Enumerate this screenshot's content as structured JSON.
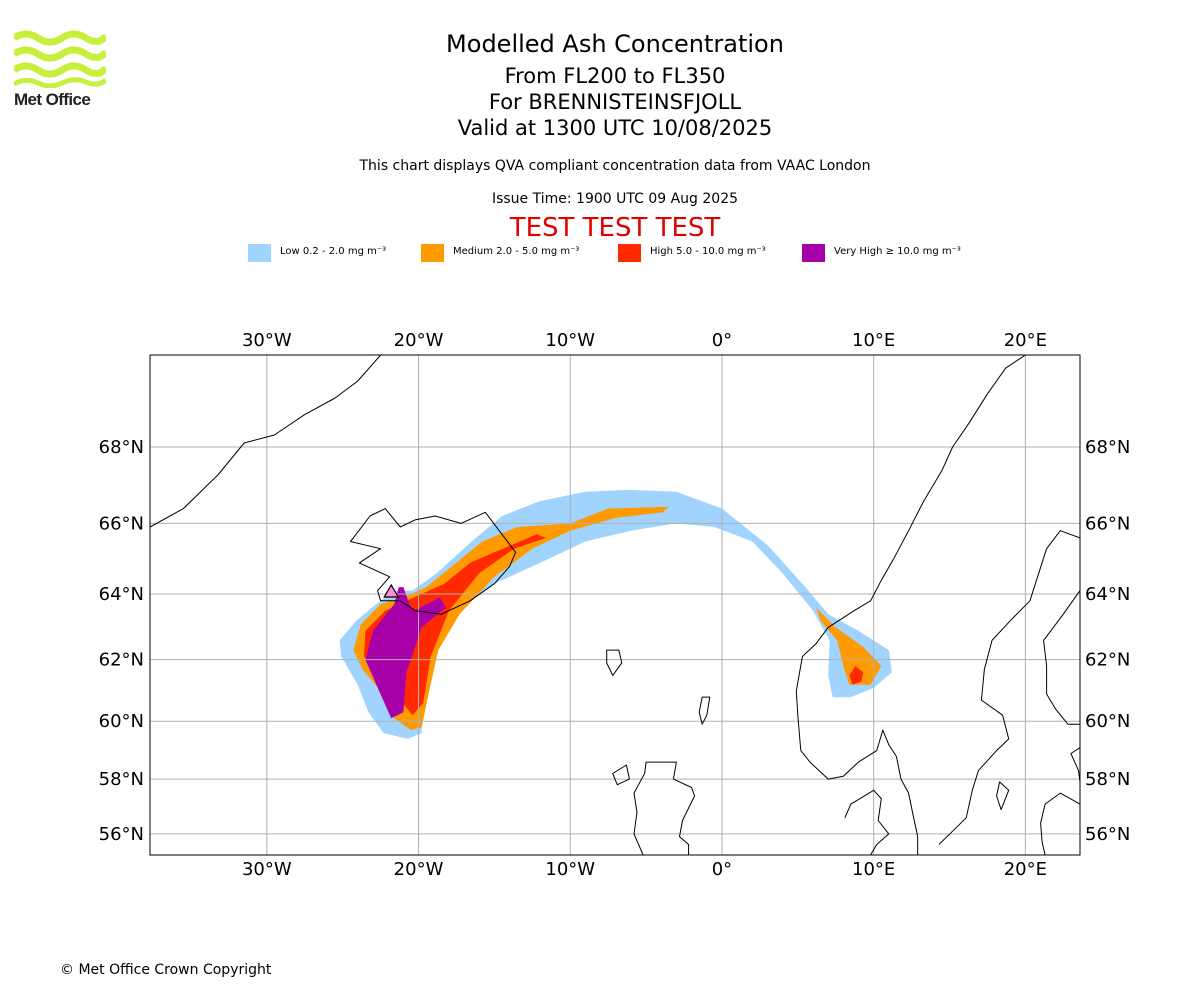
{
  "brand": {
    "name": "Met Office",
    "logo_color": "#c6f03c"
  },
  "title": {
    "main": "Modelled Ash Concentration",
    "range": "From FL200 to FL350",
    "volcano": "For BRENNISTEINSFJOLL",
    "valid": "Valid at 1300 UTC 10/08/2025"
  },
  "description": "This chart displays QVA compliant concentration data from VAAC London",
  "issue_time": "Issue Time: 1900 UTC 09 Aug 2025",
  "test_banner": {
    "text": "TEST TEST TEST",
    "color": "#e00000"
  },
  "legend": [
    {
      "label": "Low 0.2 - 2.0 mg m⁻³",
      "color": "#a0d4ff"
    },
    {
      "label": "Medium 2.0 - 5.0 mg m⁻³",
      "color": "#ff9a00"
    },
    {
      "label": "High 5.0 - 10.0 mg m⁻³",
      "color": "#ff2a00"
    },
    {
      "label": "Very High  ≥  10.0 mg m⁻³",
      "color": "#a800a8"
    }
  ],
  "map": {
    "projection": "mercator",
    "lon_range": [
      -37.7,
      23.6
    ],
    "lat_range": [
      55.2,
      70.2
    ],
    "lon_ticks": [
      {
        "value": -30,
        "label": "30°W"
      },
      {
        "value": -20,
        "label": "20°W"
      },
      {
        "value": -10,
        "label": "10°W"
      },
      {
        "value": 0,
        "label": "0°"
      },
      {
        "value": 10,
        "label": "10°E"
      },
      {
        "value": 20,
        "label": "20°E"
      }
    ],
    "lat_ticks": [
      {
        "value": 68,
        "label": "68°N"
      },
      {
        "value": 66,
        "label": "66°N"
      },
      {
        "value": 64,
        "label": "64°N"
      },
      {
        "value": 62,
        "label": "62°N"
      },
      {
        "value": 60,
        "label": "60°N"
      },
      {
        "value": 58,
        "label": "58°N"
      },
      {
        "value": 56,
        "label": "56°N"
      }
    ],
    "grid": true,
    "volcano_marker": {
      "lon": -21.8,
      "lat": 64.0
    }
  },
  "ash": {
    "low": [
      [
        -6,
        66.9
      ],
      [
        -3,
        66.85
      ],
      [
        0,
        66.4
      ],
      [
        3,
        65.4
      ],
      [
        5.5,
        64.2
      ],
      [
        7,
        63.4
      ],
      [
        9,
        62.9
      ],
      [
        11,
        62.3
      ],
      [
        11.2,
        61.6
      ],
      [
        10,
        61.1
      ],
      [
        8.5,
        60.8
      ],
      [
        7.3,
        60.8
      ],
      [
        7,
        61.5
      ],
      [
        7.1,
        62.6
      ],
      [
        6,
        63.5
      ],
      [
        4,
        64.6
      ],
      [
        2,
        65.5
      ],
      [
        -0.5,
        65.9
      ],
      [
        -3,
        66
      ],
      [
        -6,
        65.8
      ],
      [
        -9,
        65.5
      ],
      [
        -12,
        64.9
      ],
      [
        -15,
        64.3
      ],
      [
        -17.3,
        63.6
      ],
      [
        -18.8,
        62.5
      ],
      [
        -19.6,
        61
      ],
      [
        -19.8,
        59.6
      ],
      [
        -20.7,
        59.4
      ],
      [
        -22.3,
        59.6
      ],
      [
        -23.3,
        60.3
      ],
      [
        -24,
        61.2
      ],
      [
        -25.1,
        62.1
      ],
      [
        -25.2,
        62.6
      ],
      [
        -24.1,
        63.2
      ],
      [
        -22.8,
        63.7
      ],
      [
        -21.6,
        64.1
      ],
      [
        -20.4,
        64.1
      ],
      [
        -18.8,
        64.6
      ],
      [
        -16.5,
        65.5
      ],
      [
        -14.5,
        66.2
      ],
      [
        -12,
        66.6
      ],
      [
        -9,
        66.85
      ]
    ],
    "medium": [
      [
        -10,
        66.0
      ],
      [
        -7.5,
        66.4
      ],
      [
        -3.5,
        66.45
      ],
      [
        -3.9,
        66.3
      ],
      [
        -7,
        66.15
      ],
      [
        -10,
        65.8
      ],
      [
        -12.5,
        65.3
      ],
      [
        -15,
        64.5
      ],
      [
        -17.3,
        63.4
      ],
      [
        -18.7,
        62.3
      ],
      [
        -19.3,
        61
      ],
      [
        -19.8,
        59.8
      ],
      [
        -20.5,
        59.7
      ],
      [
        -21.6,
        60.1
      ],
      [
        -22.5,
        61
      ],
      [
        -23.7,
        61.7
      ],
      [
        -24.3,
        62.3
      ],
      [
        -23.8,
        63.1
      ],
      [
        -22.5,
        63.7
      ],
      [
        -21,
        63.9
      ],
      [
        -19.5,
        64.2
      ],
      [
        -17.8,
        64.8
      ],
      [
        -15.8,
        65.5
      ],
      [
        -13.5,
        65.9
      ]
    ],
    "medium2": [
      [
        6.2,
        63.6
      ],
      [
        7.5,
        63
      ],
      [
        9.3,
        62.4
      ],
      [
        10.5,
        61.8
      ],
      [
        9.8,
        61.2
      ],
      [
        8.4,
        61.2
      ],
      [
        8,
        61.8
      ],
      [
        7.6,
        62.6
      ],
      [
        6.5,
        63.2
      ]
    ],
    "high": [
      [
        -15,
        65.2
      ],
      [
        -12.2,
        65.7
      ],
      [
        -11.6,
        65.6
      ],
      [
        -13.7,
        65.3
      ],
      [
        -16,
        64.6
      ],
      [
        -18,
        63.5
      ],
      [
        -19.2,
        62.1
      ],
      [
        -19.7,
        60.6
      ],
      [
        -20.4,
        60.2
      ],
      [
        -21.2,
        60.7
      ],
      [
        -22.3,
        61.5
      ],
      [
        -23.6,
        62.1
      ],
      [
        -23.5,
        62.9
      ],
      [
        -22.2,
        63.5
      ],
      [
        -20.3,
        63.9
      ],
      [
        -18.3,
        64.3
      ],
      [
        -16.6,
        64.9
      ]
    ],
    "high2": [
      [
        8.8,
        61.8
      ],
      [
        9.3,
        61.6
      ],
      [
        9.2,
        61.3
      ],
      [
        8.6,
        61.2
      ],
      [
        8.4,
        61.5
      ]
    ],
    "veryhigh": [
      [
        -20.3,
        63.5
      ],
      [
        -18.6,
        63.9
      ],
      [
        -18.2,
        63.6
      ],
      [
        -19.8,
        63.0
      ],
      [
        -20.8,
        61.6
      ],
      [
        -21.0,
        60.3
      ],
      [
        -21.8,
        60.1
      ],
      [
        -22.6,
        61.0
      ],
      [
        -23.5,
        62.0
      ],
      [
        -23.0,
        62.9
      ],
      [
        -21.6,
        63.7
      ],
      [
        -21.3,
        64.2
      ],
      [
        -21.0,
        64.2
      ],
      [
        -20.6,
        63.7
      ]
    ]
  },
  "coast": {
    "iceland": [
      [
        -24.3,
        65.6
      ],
      [
        -23.2,
        66.2
      ],
      [
        -22.2,
        66.4
      ],
      [
        -21.2,
        65.9
      ],
      [
        -20.2,
        66.1
      ],
      [
        -18.9,
        66.2
      ],
      [
        -17.2,
        66.0
      ],
      [
        -15.6,
        66.3
      ],
      [
        -14.5,
        65.7
      ],
      [
        -13.6,
        65.2
      ],
      [
        -14.0,
        64.8
      ],
      [
        -15.0,
        64.3
      ],
      [
        -16.6,
        63.8
      ],
      [
        -18.5,
        63.4
      ],
      [
        -20.2,
        63.5
      ],
      [
        -21.2,
        63.8
      ],
      [
        -22.5,
        63.8
      ],
      [
        -22.7,
        64.1
      ],
      [
        -21.9,
        64.5
      ],
      [
        -23.9,
        64.9
      ],
      [
        -22.5,
        65.3
      ],
      [
        -24.5,
        65.5
      ]
    ],
    "greenland": [
      [
        -37.7,
        65.9
      ],
      [
        -35.5,
        66.4
      ],
      [
        -33.2,
        67.3
      ],
      [
        -31.5,
        68.1
      ],
      [
        -29.5,
        68.3
      ],
      [
        -27.5,
        68.8
      ],
      [
        -25.5,
        69.2
      ],
      [
        -24,
        69.6
      ],
      [
        -22.5,
        70.2
      ]
    ],
    "faroe": [
      [
        -7.6,
        62.3
      ],
      [
        -6.8,
        62.3
      ],
      [
        -6.6,
        61.9
      ],
      [
        -7.2,
        61.5
      ],
      [
        -7.6,
        61.9
      ]
    ],
    "shetland": [
      [
        -1.3,
        60.8
      ],
      [
        -0.8,
        60.8
      ],
      [
        -1.0,
        60.2
      ],
      [
        -1.3,
        59.9
      ],
      [
        -1.5,
        60.3
      ]
    ],
    "scotland": [
      [
        -5.0,
        58.6
      ],
      [
        -3.0,
        58.6
      ],
      [
        -3.2,
        58.0
      ],
      [
        -2.0,
        57.7
      ],
      [
        -1.8,
        57.4
      ],
      [
        -2.6,
        56.5
      ],
      [
        -2.8,
        55.9
      ],
      [
        -2.2,
        55.6
      ],
      [
        -2.2,
        55.2
      ],
      [
        -5.2,
        55.2
      ],
      [
        -5.8,
        56.0
      ],
      [
        -5.6,
        56.8
      ],
      [
        -5.8,
        57.5
      ],
      [
        -5.1,
        58.2
      ]
    ],
    "lewis": [
      [
        -6.3,
        58.5
      ],
      [
        -6.1,
        58.0
      ],
      [
        -6.9,
        57.8
      ],
      [
        -7.2,
        58.2
      ]
    ],
    "norway": [
      [
        5.2,
        59.0
      ],
      [
        5.0,
        60.2
      ],
      [
        4.9,
        61.0
      ],
      [
        5.3,
        62.1
      ],
      [
        6.2,
        62.5
      ],
      [
        7.0,
        63.0
      ],
      [
        8.7,
        63.5
      ],
      [
        9.8,
        63.8
      ],
      [
        10.5,
        64.4
      ],
      [
        11.3,
        65.0
      ],
      [
        12.3,
        65.8
      ],
      [
        13.3,
        66.6
      ],
      [
        14.5,
        67.4
      ],
      [
        15.2,
        68.0
      ],
      [
        16.3,
        68.6
      ],
      [
        17.5,
        69.3
      ],
      [
        18.7,
        69.9
      ],
      [
        20.0,
        70.2
      ]
    ],
    "southnorway": [
      [
        5.2,
        59.0
      ],
      [
        5.8,
        58.6
      ],
      [
        7.0,
        58.0
      ],
      [
        8.0,
        58.1
      ],
      [
        9.0,
        58.6
      ],
      [
        10.2,
        59.0
      ],
      [
        10.6,
        59.7
      ],
      [
        11.0,
        59.2
      ],
      [
        11.5,
        58.8
      ]
    ],
    "sweden": [
      [
        11.5,
        58.8
      ],
      [
        11.8,
        58.0
      ],
      [
        12.3,
        57.5
      ],
      [
        12.6,
        56.7
      ],
      [
        12.9,
        55.9
      ],
      [
        12.9,
        55.2
      ]
    ],
    "denmark": [
      [
        8.1,
        56.6
      ],
      [
        8.5,
        57.1
      ],
      [
        10.0,
        57.6
      ],
      [
        10.5,
        57.3
      ],
      [
        10.3,
        56.5
      ],
      [
        11.0,
        56.0
      ],
      [
        10.2,
        55.6
      ],
      [
        9.8,
        55.2
      ]
    ],
    "gulf": [
      [
        23.6,
        59.9
      ],
      [
        22.8,
        59.9
      ],
      [
        22.0,
        60.4
      ],
      [
        21.4,
        60.9
      ],
      [
        21.4,
        61.8
      ],
      [
        21.2,
        62.6
      ],
      [
        22.5,
        63.4
      ],
      [
        23.6,
        64.1
      ]
    ],
    "gulf2": [
      [
        23.6,
        65.6
      ],
      [
        22.3,
        65.8
      ],
      [
        21.4,
        65.3
      ],
      [
        20.3,
        63.8
      ],
      [
        19.0,
        63.2
      ],
      [
        17.8,
        62.6
      ],
      [
        17.3,
        61.7
      ],
      [
        17.1,
        60.7
      ],
      [
        18.5,
        60.2
      ],
      [
        18.9,
        59.4
      ],
      [
        18.1,
        59.0
      ],
      [
        16.9,
        58.3
      ],
      [
        16.5,
        57.6
      ],
      [
        16.1,
        56.6
      ],
      [
        15.2,
        56.1
      ],
      [
        14.3,
        55.6
      ]
    ],
    "estonia": [
      [
        23.6,
        59.1
      ],
      [
        23.0,
        58.9
      ],
      [
        23.5,
        58.3
      ],
      [
        23.6,
        57.9
      ]
    ],
    "gotland": [
      [
        18.3,
        57.9
      ],
      [
        18.9,
        57.6
      ],
      [
        18.4,
        56.9
      ],
      [
        18.1,
        57.4
      ]
    ],
    "latvia": [
      [
        23.6,
        57.1
      ],
      [
        22.3,
        57.5
      ],
      [
        21.3,
        57.1
      ],
      [
        21.0,
        56.4
      ],
      [
        21.1,
        55.7
      ],
      [
        21.3,
        55.2
      ]
    ]
  }
}
